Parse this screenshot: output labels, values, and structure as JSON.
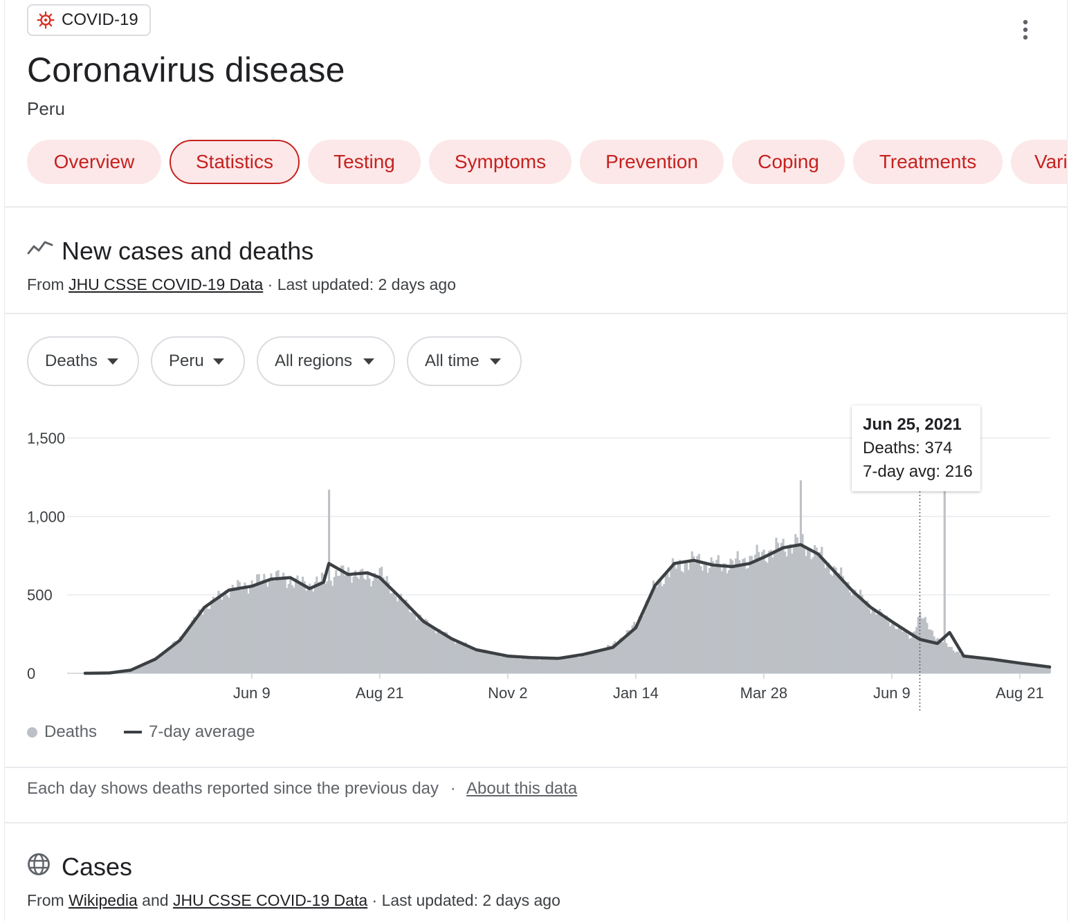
{
  "topic_chip": {
    "label": "COVID-19",
    "icon": "virus-icon"
  },
  "header": {
    "title": "Coronavirus disease",
    "place": "Peru",
    "menu_icon": "more-vert-icon"
  },
  "tabs": [
    {
      "label": "Overview",
      "active": false
    },
    {
      "label": "Statistics",
      "active": true
    },
    {
      "label": "Testing",
      "active": false
    },
    {
      "label": "Symptoms",
      "active": false
    },
    {
      "label": "Prevention",
      "active": false
    },
    {
      "label": "Coping",
      "active": false
    },
    {
      "label": "Treatments",
      "active": false
    },
    {
      "label": "Vari",
      "active": false
    }
  ],
  "section1": {
    "title": "New cases and deaths",
    "icon": "trend-line-icon",
    "source_prefix": "From ",
    "source_link": "JHU CSSE COVID-19 Data",
    "updated": " · Last updated: 2 days ago"
  },
  "filters": [
    {
      "label": "Deaths"
    },
    {
      "label": "Peru"
    },
    {
      "label": "All regions"
    },
    {
      "label": "All time"
    }
  ],
  "chart_data": {
    "type": "bar",
    "title": "",
    "xlabel": "",
    "ylabel": "",
    "ylim": [
      0,
      1500
    ],
    "yticks": [
      0,
      500,
      1000,
      1500
    ],
    "ytick_labels": [
      "0",
      "500",
      "1,000",
      "1,500"
    ],
    "x_start": "2020-03-06",
    "x_end": "2021-09-07",
    "xtick_dates": [
      "2020-06-09",
      "2020-08-21",
      "2020-11-02",
      "2021-01-14",
      "2021-03-28",
      "2021-06-09",
      "2021-08-21"
    ],
    "xtick_labels": [
      "Jun 9",
      "Aug 21",
      "Nov 2",
      "Jan 14",
      "Mar 28",
      "Jun 9",
      "Aug 21"
    ],
    "grid": true,
    "legend_position": "bottom-left",
    "series": [
      {
        "name": "Deaths",
        "kind": "bar",
        "color": "#bdc1c6",
        "dates": [
          "2020-03-06",
          "2020-03-20",
          "2020-04-01",
          "2020-04-15",
          "2020-04-29",
          "2020-05-13",
          "2020-05-27",
          "2020-06-09",
          "2020-06-20",
          "2020-07-01",
          "2020-07-12",
          "2020-07-23",
          "2020-08-03",
          "2020-08-14",
          "2020-08-21",
          "2020-09-01",
          "2020-09-15",
          "2020-10-01",
          "2020-10-15",
          "2020-11-02",
          "2020-11-15",
          "2020-12-01",
          "2020-12-15",
          "2021-01-01",
          "2021-01-14",
          "2021-01-25",
          "2021-02-05",
          "2021-02-16",
          "2021-02-27",
          "2021-03-10",
          "2021-03-20",
          "2021-03-28",
          "2021-04-08",
          "2021-04-18",
          "2021-04-28",
          "2021-05-08",
          "2021-05-18",
          "2021-05-28",
          "2021-06-09",
          "2021-06-20",
          "2021-06-25",
          "2021-07-05",
          "2021-07-20",
          "2021-08-05",
          "2021-08-21",
          "2021-09-07"
        ],
        "values": [
          0,
          3,
          25,
          90,
          220,
          420,
          530,
          570,
          620,
          590,
          560,
          610,
          650,
          600,
          640,
          480,
          330,
          220,
          150,
          105,
          95,
          90,
          115,
          180,
          310,
          560,
          680,
          720,
          690,
          700,
          730,
          760,
          810,
          830,
          760,
          650,
          530,
          420,
          320,
          230,
          374,
          220,
          110,
          85,
          60,
          40
        ],
        "spikes": [
          {
            "date": "2020-07-23",
            "value": 1170
          },
          {
            "date": "2021-04-18",
            "value": 1230
          },
          {
            "date": "2021-07-09",
            "value": 1170
          }
        ]
      },
      {
        "name": "7-day average",
        "kind": "line",
        "color": "#3c4043",
        "dates": [
          "2020-03-06",
          "2020-03-20",
          "2020-04-01",
          "2020-04-15",
          "2020-04-29",
          "2020-05-13",
          "2020-05-27",
          "2020-06-09",
          "2020-06-20",
          "2020-07-01",
          "2020-07-12",
          "2020-07-20",
          "2020-07-23",
          "2020-08-03",
          "2020-08-14",
          "2020-08-21",
          "2020-09-01",
          "2020-09-15",
          "2020-10-01",
          "2020-10-15",
          "2020-11-02",
          "2020-11-15",
          "2020-12-01",
          "2020-12-15",
          "2021-01-01",
          "2021-01-14",
          "2021-01-25",
          "2021-02-05",
          "2021-02-16",
          "2021-02-27",
          "2021-03-10",
          "2021-03-20",
          "2021-03-28",
          "2021-04-08",
          "2021-04-18",
          "2021-04-28",
          "2021-05-08",
          "2021-05-18",
          "2021-05-28",
          "2021-06-09",
          "2021-06-20",
          "2021-06-25",
          "2021-07-05",
          "2021-07-12",
          "2021-07-20",
          "2021-08-05",
          "2021-08-21",
          "2021-09-07"
        ],
        "values": [
          0,
          2,
          20,
          90,
          210,
          420,
          530,
          555,
          600,
          610,
          540,
          580,
          700,
          630,
          640,
          610,
          490,
          330,
          220,
          150,
          110,
          100,
          95,
          120,
          165,
          290,
          560,
          700,
          720,
          690,
          680,
          700,
          740,
          800,
          820,
          760,
          640,
          520,
          420,
          330,
          250,
          216,
          190,
          260,
          110,
          90,
          65,
          40
        ]
      }
    ],
    "tooltip": {
      "date": "Jun 25, 2021",
      "deaths": "Deaths: 374",
      "avg": "7-day avg: 216",
      "marker_date": "2021-06-25"
    }
  },
  "legend": {
    "bar_label": "Deaths",
    "line_label": "7-day average"
  },
  "footnote": {
    "text": "Each day shows deaths reported since the previous day",
    "separator": "·",
    "link": "About this data"
  },
  "section2": {
    "title": "Cases",
    "icon": "globe-icon",
    "source_prefix": "From ",
    "link1": "Wikipedia",
    "middle": " and ",
    "link2": "JHU CSSE COVID-19 Data",
    "updated": " · Last updated: 2 days ago"
  }
}
